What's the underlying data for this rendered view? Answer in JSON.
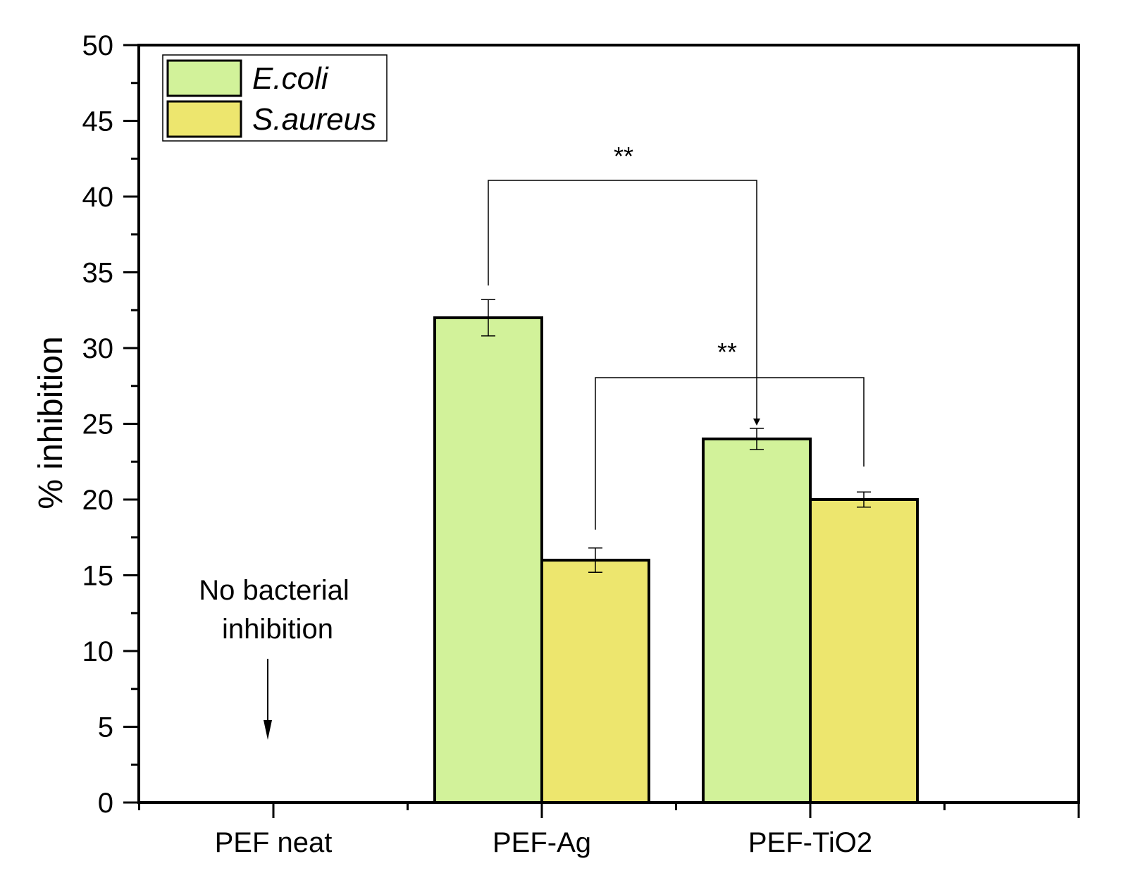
{
  "colors": {
    "ecoli_fill": "#d2f29a",
    "saureus_fill": "#ede66e",
    "stroke": "#000000"
  },
  "chart_data": {
    "type": "bar",
    "title": "",
    "xlabel": "",
    "ylabel": "% inhibition",
    "ylim": [
      0,
      50
    ],
    "yticks": [
      "0",
      "5",
      "10",
      "15",
      "20",
      "25",
      "30",
      "35",
      "40",
      "45",
      "50"
    ],
    "categories": [
      "PEF neat",
      "PEF-Ag",
      "PEF-TiO2"
    ],
    "series": [
      {
        "name": "E.coli",
        "values": [
          null,
          32,
          24
        ],
        "errors": [
          null,
          1.2,
          0.7
        ]
      },
      {
        "name": "S.aureus",
        "values": [
          null,
          16,
          20
        ],
        "errors": [
          null,
          0.8,
          0.5
        ]
      }
    ],
    "legend_position": "top-left",
    "grid": false,
    "annotations": {
      "no_inhibition": [
        "No bacterial",
        "inhibition"
      ],
      "significance": [
        {
          "label": "**",
          "from": "PEF-Ag E.coli",
          "to": "PEF-TiO2 E.coli"
        },
        {
          "label": "**",
          "from": "PEF-Ag S.aureus",
          "to": "PEF-TiO2 S.aureus"
        }
      ]
    }
  }
}
